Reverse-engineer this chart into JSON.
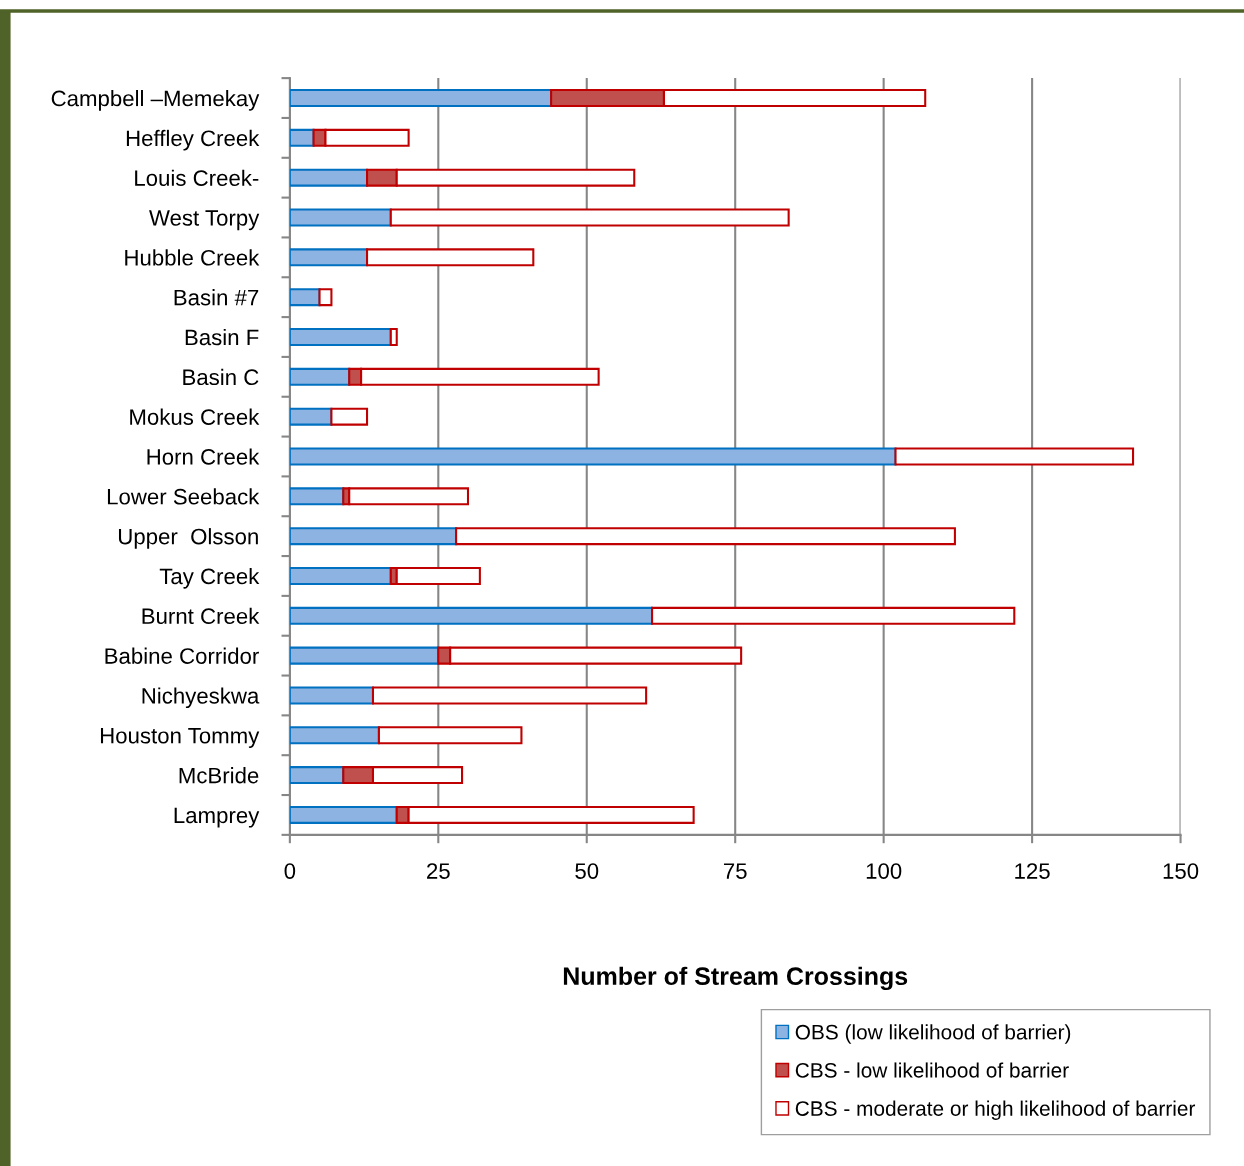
{
  "chart_data": {
    "type": "bar",
    "orientation": "horizontal",
    "stacked": true,
    "categories": [
      "Campbell –Memekay",
      "Heffley Creek",
      "Louis Creek-",
      "West Torpy",
      "Hubble Creek",
      "Basin #7",
      "Basin F",
      "Basin C",
      "Mokus Creek",
      "Horn Creek",
      "Lower Seeback",
      "Upper  Olsson",
      "Tay Creek",
      "Burnt Creek",
      "Babine Corridor",
      "Nichyeskwa",
      "Houston Tommy",
      "McBride",
      "Lamprey"
    ],
    "series": [
      {
        "name": "OBS (low likelihood of barrier)",
        "color": "#8db3e2",
        "values": [
          44,
          4,
          13,
          17,
          13,
          5,
          17,
          10,
          7,
          102,
          9,
          28,
          17,
          61,
          25,
          14,
          15,
          9,
          18
        ]
      },
      {
        "name": "CBS - low likelihood of barrier",
        "color": "#c0504d",
        "values": [
          19,
          2,
          5,
          0,
          0,
          0,
          0,
          2,
          0,
          0,
          1,
          0,
          1,
          0,
          2,
          0,
          0,
          5,
          2
        ]
      },
      {
        "name": "CBS - moderate or high likelihood of barrier",
        "color": "#ffffff",
        "values": [
          44,
          14,
          40,
          67,
          28,
          2,
          1,
          40,
          6,
          40,
          20,
          84,
          14,
          61,
          49,
          46,
          24,
          15,
          48
        ]
      }
    ],
    "xlabel": "Number of Stream Crossings",
    "xlim": [
      0,
      150
    ],
    "xticks": [
      0,
      25,
      50,
      75,
      100,
      125,
      150
    ],
    "grid": "x",
    "legend": "bottom right"
  }
}
